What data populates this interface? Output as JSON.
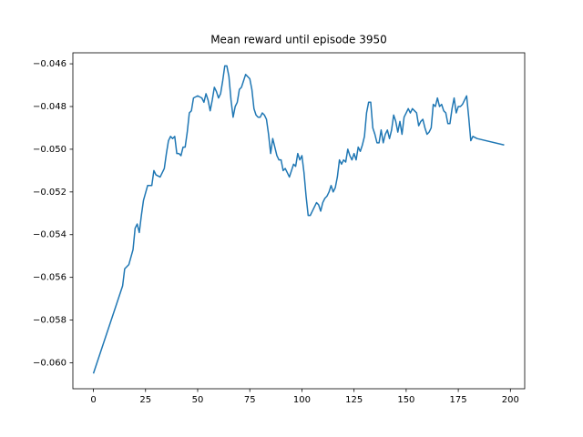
{
  "chart_data": {
    "type": "line",
    "title": "Mean reward until episode 3950",
    "x": [
      0,
      14,
      15,
      17,
      19,
      20,
      21,
      22,
      23,
      24,
      26,
      28,
      29,
      30,
      32,
      34,
      35,
      36,
      37,
      38,
      39,
      40,
      41,
      42,
      43,
      44,
      45,
      46,
      47,
      48,
      50,
      52,
      53,
      54,
      55,
      56,
      57,
      58,
      59,
      60,
      61,
      62,
      63,
      64,
      65,
      66,
      67,
      68,
      69,
      70,
      71,
      72,
      73,
      74,
      75,
      76,
      77,
      78,
      79,
      80,
      81,
      82,
      83,
      84,
      85,
      86,
      87,
      88,
      89,
      90,
      91,
      92,
      93,
      94,
      95,
      96,
      97,
      98,
      99,
      100,
      101,
      102,
      103,
      104,
      105,
      107,
      108,
      109,
      110,
      111,
      112,
      113,
      114,
      115,
      116,
      117,
      118,
      119,
      120,
      121,
      122,
      123,
      124,
      125,
      126,
      127,
      128,
      129,
      130,
      131,
      132,
      133,
      134,
      135,
      136,
      137,
      138,
      139,
      140,
      141,
      142,
      143,
      144,
      145,
      146,
      147,
      148,
      149,
      150,
      151,
      152,
      153,
      154,
      155,
      156,
      157,
      158,
      159,
      160,
      161,
      162,
      163,
      164,
      165,
      166,
      167,
      168,
      169,
      170,
      171,
      172,
      173,
      174,
      175,
      176,
      177,
      178,
      179,
      180,
      181,
      182,
      184,
      197
    ],
    "series": [
      {
        "color": "#1f77b4",
        "values": [
          -0.0605,
          -0.0564,
          -0.0556,
          -0.0554,
          -0.0547,
          -0.0537,
          -0.0535,
          -0.0539,
          -0.0531,
          -0.0524,
          -0.0517,
          -0.0517,
          -0.051,
          -0.0512,
          -0.0513,
          -0.0509,
          -0.0502,
          -0.0496,
          -0.0494,
          -0.0495,
          -0.0494,
          -0.0502,
          -0.0502,
          -0.0503,
          -0.0499,
          -0.0499,
          -0.0492,
          -0.0483,
          -0.0482,
          -0.0476,
          -0.0475,
          -0.0476,
          -0.0478,
          -0.0474,
          -0.0477,
          -0.0482,
          -0.0477,
          -0.0471,
          -0.0473,
          -0.0476,
          -0.0474,
          -0.0468,
          -0.0461,
          -0.0461,
          -0.0466,
          -0.0477,
          -0.0485,
          -0.048,
          -0.0478,
          -0.0472,
          -0.0471,
          -0.0468,
          -0.0465,
          -0.0466,
          -0.0467,
          -0.0472,
          -0.0481,
          -0.0484,
          -0.0485,
          -0.0485,
          -0.0483,
          -0.0484,
          -0.0486,
          -0.0493,
          -0.0502,
          -0.0495,
          -0.0499,
          -0.0503,
          -0.0505,
          -0.0505,
          -0.051,
          -0.0509,
          -0.0511,
          -0.0513,
          -0.051,
          -0.0507,
          -0.0508,
          -0.0502,
          -0.0505,
          -0.0503,
          -0.0511,
          -0.0522,
          -0.0531,
          -0.0531,
          -0.0529,
          -0.0525,
          -0.0526,
          -0.0529,
          -0.0525,
          -0.0523,
          -0.0522,
          -0.052,
          -0.0517,
          -0.052,
          -0.0518,
          -0.0513,
          -0.0505,
          -0.0507,
          -0.0505,
          -0.0506,
          -0.05,
          -0.0503,
          -0.0505,
          -0.0502,
          -0.0505,
          -0.0499,
          -0.0501,
          -0.0498,
          -0.0494,
          -0.0483,
          -0.0478,
          -0.0478,
          -0.049,
          -0.0493,
          -0.0497,
          -0.0497,
          -0.0491,
          -0.0497,
          -0.0493,
          -0.0491,
          -0.0495,
          -0.0491,
          -0.0484,
          -0.0487,
          -0.0492,
          -0.0487,
          -0.0493,
          -0.0485,
          -0.0483,
          -0.0481,
          -0.0483,
          -0.0481,
          -0.0482,
          -0.0483,
          -0.0489,
          -0.0487,
          -0.0486,
          -0.049,
          -0.0493,
          -0.0492,
          -0.049,
          -0.0479,
          -0.048,
          -0.0476,
          -0.048,
          -0.0479,
          -0.0482,
          -0.0483,
          -0.0488,
          -0.0488,
          -0.0481,
          -0.0476,
          -0.0483,
          -0.048,
          -0.048,
          -0.0479,
          -0.0477,
          -0.0475,
          -0.0485,
          -0.0496,
          -0.0494,
          -0.0495,
          -0.0498
        ]
      }
    ],
    "xlim": [
      -9.85,
      206.85
    ],
    "ylim": [
      -0.061215,
      -0.045485
    ],
    "xticks": [
      0,
      25,
      50,
      75,
      100,
      125,
      150,
      175,
      200
    ],
    "yticks": [
      {
        "value": -0.06,
        "label": "−0.060"
      },
      {
        "value": -0.058,
        "label": "−0.058"
      },
      {
        "value": -0.056,
        "label": "−0.056"
      },
      {
        "value": -0.054,
        "label": "−0.054"
      },
      {
        "value": -0.052,
        "label": "−0.052"
      },
      {
        "value": -0.05,
        "label": "−0.050"
      },
      {
        "value": -0.048,
        "label": "−0.048"
      },
      {
        "value": -0.046,
        "label": "−0.046"
      }
    ]
  }
}
